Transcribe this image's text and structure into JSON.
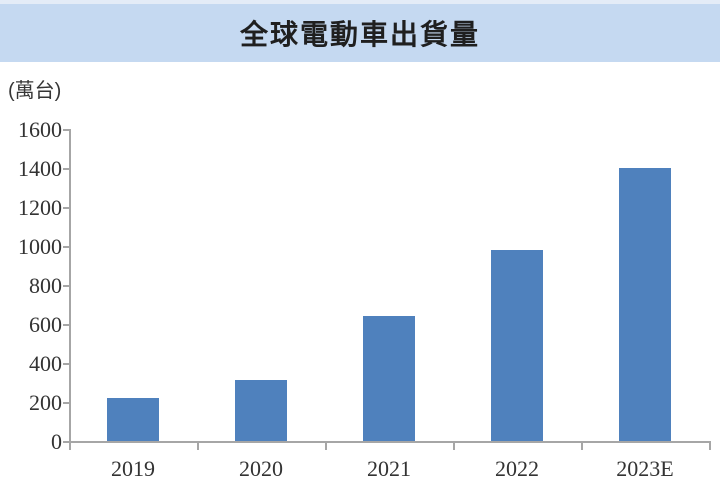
{
  "banner": {
    "bg_color": "#c5d9f1",
    "text_color": "#1f1f1f"
  },
  "chart_data": {
    "type": "bar",
    "title": "全球電動車出貨量",
    "unit_label": "(萬台)",
    "categories": [
      "2019",
      "2020",
      "2021",
      "2022",
      "2023E"
    ],
    "values": [
      220,
      315,
      640,
      980,
      1400
    ],
    "xlabel": "",
    "ylabel": "(萬台)",
    "ylim": [
      0,
      1600
    ],
    "ytick_step": 200,
    "ytick_labels": [
      "0",
      "200",
      "400",
      "600",
      "800",
      "1000",
      "1200",
      "1400",
      "1600"
    ],
    "grid": false,
    "legend_position": "none",
    "bar_color": "#4f81bd",
    "axis_color": "#a6a6a6",
    "tick_label_color": "#333333"
  }
}
